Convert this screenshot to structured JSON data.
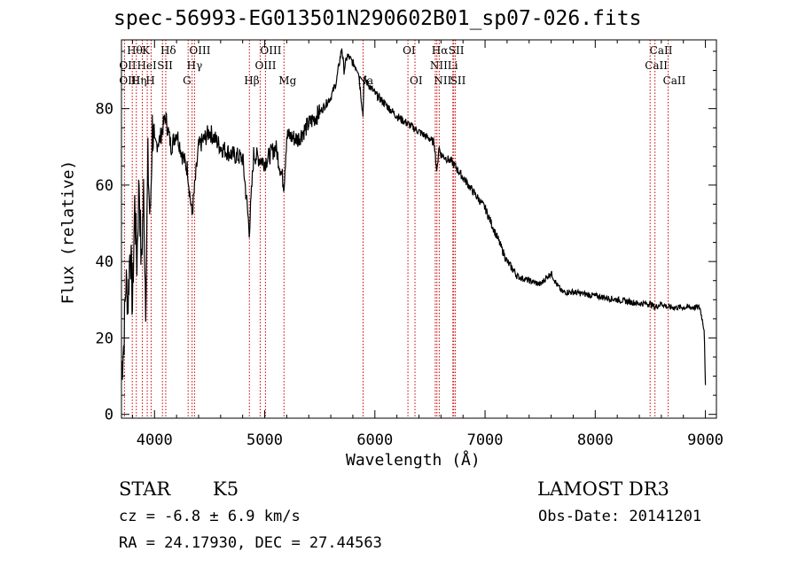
{
  "header": {
    "title": "spec-56993-EG013501N290602B01_sp07-026.fits"
  },
  "chart_data": {
    "type": "line",
    "title": "spec-56993-EG013501N290602B01_sp07-026.fits",
    "xlabel": "Wavelength (Å)",
    "ylabel": "Flux (relative)",
    "xlim": [
      3700,
      9100
    ],
    "ylim": [
      -1,
      98
    ],
    "xticks": [
      "4000",
      "5000",
      "6000",
      "7000",
      "8000",
      "9000"
    ],
    "xtick_values": [
      4000,
      5000,
      6000,
      7000,
      8000,
      9000
    ],
    "yticks": [
      "0",
      "20",
      "40",
      "60",
      "80"
    ],
    "ytick_values": [
      0,
      20,
      40,
      60,
      80
    ],
    "spectrum": {
      "name": "flux",
      "x": [
        3700,
        3720,
        3740,
        3760,
        3780,
        3800,
        3820,
        3840,
        3860,
        3880,
        3900,
        3920,
        3940,
        3960,
        3980,
        4000,
        4050,
        4100,
        4150,
        4200,
        4250,
        4300,
        4340,
        4400,
        4500,
        4600,
        4700,
        4800,
        4861,
        4900,
        5000,
        5100,
        5175,
        5200,
        5300,
        5400,
        5500,
        5600,
        5650,
        5700,
        5720,
        5750,
        5800,
        5850,
        5893,
        5900,
        5950,
        6000,
        6100,
        6200,
        6300,
        6400,
        6500,
        6540,
        6563,
        6580,
        6600,
        6700,
        6750,
        6800,
        6900,
        7000,
        7100,
        7200,
        7250,
        7300,
        7400,
        7500,
        7600,
        7650,
        7700,
        7800,
        8000,
        8200,
        8400,
        8498,
        8542,
        8600,
        8662,
        8800,
        8950,
        8990,
        9000
      ],
      "y": [
        12,
        18,
        35,
        30,
        45,
        28,
        55,
        40,
        62,
        38,
        58,
        30,
        66,
        50,
        75,
        70,
        72,
        78,
        70,
        74,
        68,
        64,
        52,
        70,
        74,
        70,
        68,
        67,
        48,
        68,
        66,
        70,
        60,
        73,
        72,
        76,
        79,
        83,
        87,
        96,
        90,
        94,
        92,
        90,
        78,
        88,
        86,
        84,
        81,
        78,
        76,
        74,
        72,
        71,
        63,
        70,
        68,
        66,
        64,
        62,
        58,
        54,
        47,
        40,
        38,
        36,
        35,
        34,
        37,
        34,
        32,
        32,
        31,
        30,
        29,
        29,
        28,
        29,
        28,
        28,
        28,
        22,
        7
      ]
    },
    "spectral_lines": [
      {
        "label": "Hθ",
        "wavelength": 3798,
        "row": 1
      },
      {
        "label": "OII",
        "wavelength": 3727,
        "row": 2
      },
      {
        "label": "OIII",
        "wavelength": 3727,
        "row": 3
      },
      {
        "label": "K",
        "wavelength": 3934,
        "row": 1
      },
      {
        "label": "HeI",
        "wavelength": 3889,
        "row": 2
      },
      {
        "label": "Hη",
        "wavelength": 3835,
        "row": 3
      },
      {
        "label": "Hδ",
        "wavelength": 4102,
        "row": 1
      },
      {
        "label": "SII",
        "wavelength": 4072,
        "row": 2
      },
      {
        "label": "H",
        "wavelength": 3969,
        "row": 3
      },
      {
        "label": "OIII",
        "wavelength": 4363,
        "row": 1
      },
      {
        "label": "Hγ",
        "wavelength": 4341,
        "row": 2
      },
      {
        "label": "G",
        "wavelength": 4305,
        "row": 3
      },
      {
        "label": "Hβ",
        "wavelength": 4861,
        "row": 3
      },
      {
        "label": "OIII",
        "wavelength": 5007,
        "row": 1
      },
      {
        "label": "OIII",
        "wavelength": 4959,
        "row": 2
      },
      {
        "label": "Mg",
        "wavelength": 5175,
        "row": 3
      },
      {
        "label": "Na",
        "wavelength": 5893,
        "row": 3
      },
      {
        "label": "OI",
        "wavelength": 6300,
        "row": 1
      },
      {
        "label": "OI",
        "wavelength": 6364,
        "row": 3
      },
      {
        "label": "Hα",
        "wavelength": 6563,
        "row": 1
      },
      {
        "label": "NII",
        "wavelength": 6548,
        "row": 2
      },
      {
        "label": "NII",
        "wavelength": 6584,
        "row": 3
      },
      {
        "label": "SII",
        "wavelength": 6716,
        "row": 1
      },
      {
        "label": "Li",
        "wavelength": 6708,
        "row": 2
      },
      {
        "label": "SII",
        "wavelength": 6731,
        "row": 3
      },
      {
        "label": "CaII",
        "wavelength": 8542,
        "row": 1
      },
      {
        "label": "CaII",
        "wavelength": 8498,
        "row": 2
      },
      {
        "label": "CaII",
        "wavelength": 8662,
        "row": 3
      }
    ]
  },
  "info": {
    "class": "STAR",
    "subclass": "K5",
    "survey": "LAMOST DR3",
    "cz": "cz = -6.8 ± 6.9 km/s",
    "obs_date": "Obs-Date: 20141201",
    "coords": "RA =  24.17930, DEC =  27.44563"
  },
  "colors": {
    "line_marker": "#cc0000",
    "spectrum": "#000000",
    "axis": "#000000"
  }
}
